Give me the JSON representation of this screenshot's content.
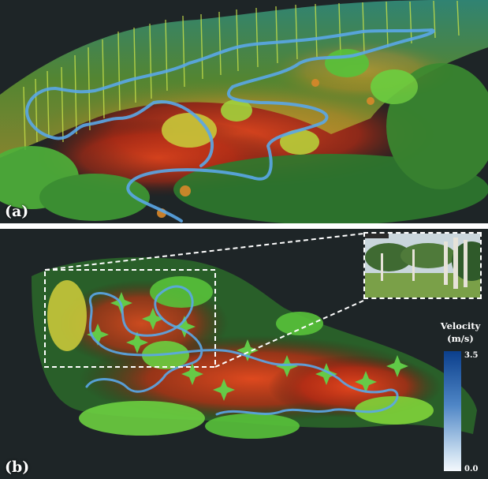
{
  "panel_a": {
    "label": "(a)"
  },
  "panel_b": {
    "label": "(b)"
  },
  "legend": {
    "title_line1": "Velocity",
    "title_line2": "(m/s)",
    "max": "3.5",
    "min": "0.0"
  },
  "colors": {
    "background": "#1f2628",
    "ground_red": "#d9361a",
    "vegetation_green": "#58c23a",
    "vegetation_yellow": "#d7d13a",
    "trajectory_blue": "#5aa7e8",
    "legend_top": "#0b3f8c",
    "legend_bottom": "#f4f8fc"
  },
  "icons": [
    "point-cloud-scene",
    "trajectory-path",
    "zoom-box",
    "inset-photo"
  ]
}
